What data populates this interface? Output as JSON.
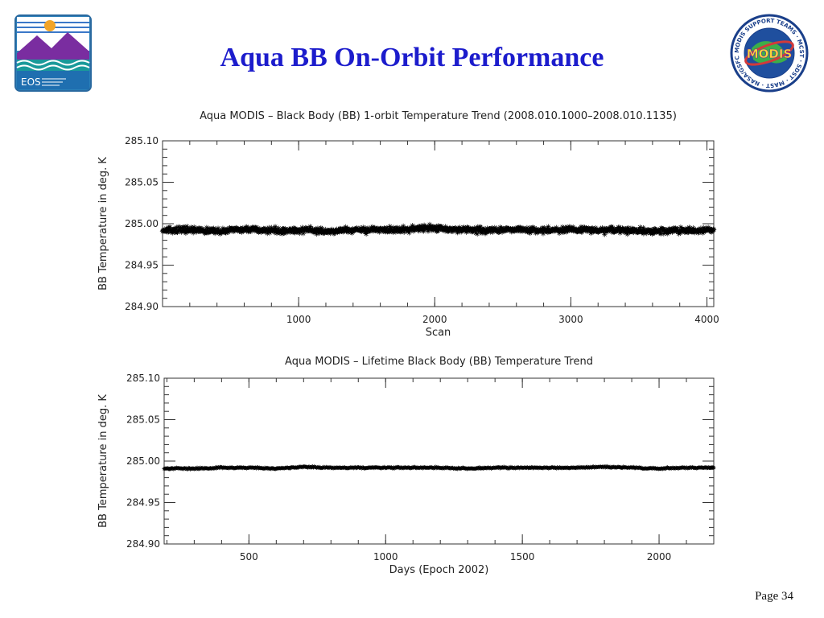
{
  "slide": {
    "title": "Aqua BB On-Orbit Performance",
    "page_number": "Page 34",
    "eos_logo_text": "EOS",
    "modis_logo_text": "MODIS",
    "modis_logo_ring_text": "MODIS SUPPORT TEAMS · MCST · SDST · MAST · NASA/GSFC"
  },
  "colors": {
    "title": "#1c1ccc",
    "data_marks": "#000000",
    "axis_text": "#222222"
  },
  "chart_data": [
    {
      "type": "scatter",
      "title": "Aqua MODIS – Black Body (BB) 1-orbit Temperature Trend (2008.010.1000–2008.010.1135)",
      "xlabel": "Scan",
      "ylabel": "BB Temperature in deg. K",
      "xlim": [
        0,
        4050
      ],
      "ylim": [
        284.9,
        285.1
      ],
      "xticks": [
        "1000",
        "2000",
        "3000",
        "4000"
      ],
      "yticks": [
        "285.10",
        "285.05",
        "285.00",
        "284.95",
        "284.90"
      ],
      "marker": "asterisk",
      "series": [
        {
          "x": [
            0,
            200,
            400,
            600,
            800,
            1000,
            1200,
            1400,
            1600,
            1800,
            2000,
            2200,
            2400,
            2600,
            2800,
            3000,
            3200,
            3400,
            3600,
            3800,
            4050
          ],
          "y": [
            284.992,
            284.993,
            284.991,
            284.993,
            284.992,
            284.992,
            284.991,
            284.992,
            284.993,
            284.993,
            284.995,
            284.993,
            284.992,
            284.993,
            284.992,
            284.993,
            284.992,
            284.992,
            284.991,
            284.992,
            284.992
          ],
          "spread": [
            0.006,
            0.006,
            0.006,
            0.006,
            0.006,
            0.006,
            0.006,
            0.006,
            0.006,
            0.006,
            0.007,
            0.006,
            0.006,
            0.006,
            0.006,
            0.006,
            0.006,
            0.006,
            0.006,
            0.006,
            0.006
          ]
        }
      ]
    },
    {
      "type": "scatter",
      "title": "Aqua MODIS – Lifetime Black Body (BB) Temperature Trend",
      "xlabel": "Days (Epoch 2002)",
      "ylabel": "BB Temperature in deg. K",
      "xlim": [
        190,
        2200
      ],
      "ylim": [
        284.9,
        285.1
      ],
      "xticks": [
        "500",
        "1000",
        "1500",
        "2000"
      ],
      "yticks": [
        "285.10",
        "285.05",
        "285.00",
        "284.95",
        "284.90"
      ],
      "marker": "asterisk",
      "series": [
        {
          "x": [
            190,
            300,
            400,
            500,
            600,
            700,
            800,
            900,
            1000,
            1100,
            1200,
            1300,
            1400,
            1500,
            1600,
            1700,
            1800,
            1900,
            2000,
            2100,
            2200
          ],
          "y": [
            284.991,
            284.991,
            284.992,
            284.992,
            284.991,
            284.993,
            284.992,
            284.992,
            284.992,
            284.992,
            284.992,
            284.991,
            284.992,
            284.992,
            284.992,
            284.992,
            284.993,
            284.992,
            284.991,
            284.992,
            284.992
          ],
          "spread": [
            0.0015,
            0.0015,
            0.0015,
            0.0015,
            0.0015,
            0.0015,
            0.0015,
            0.0015,
            0.0015,
            0.0015,
            0.0015,
            0.0015,
            0.0015,
            0.0015,
            0.0015,
            0.0015,
            0.0015,
            0.0015,
            0.0015,
            0.0015,
            0.0015
          ]
        }
      ]
    }
  ]
}
